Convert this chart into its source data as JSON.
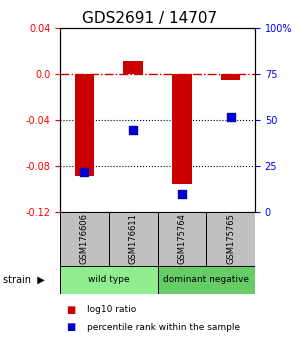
{
  "title": "GDS2691 / 14707",
  "samples": [
    "GSM176606",
    "GSM176611",
    "GSM175764",
    "GSM175765"
  ],
  "log10_ratio": [
    -0.088,
    0.012,
    -0.095,
    -0.005
  ],
  "percentile": [
    22,
    45,
    10,
    52
  ],
  "groups": [
    {
      "label": "wild type",
      "samples": [
        0,
        1
      ],
      "color": "#90ee90"
    },
    {
      "label": "dominant negative",
      "samples": [
        2,
        3
      ],
      "color": "#66cc66"
    }
  ],
  "ylim_left": [
    -0.12,
    0.04
  ],
  "ylim_right": [
    0,
    100
  ],
  "yticks_left": [
    -0.12,
    -0.08,
    -0.04,
    0.0,
    0.04
  ],
  "yticks_right": [
    0,
    25,
    50,
    75,
    100
  ],
  "bar_color": "#cc0000",
  "dot_color": "#0000cc",
  "hline_color": "#cc0000",
  "dotted_line_color": "#000000",
  "dotted_line_vals": [
    -0.04,
    -0.08
  ],
  "bar_width": 0.4,
  "background_color": "#ffffff",
  "label_log10": "log10 ratio",
  "label_percentile": "percentile rank within the sample",
  "strain_label": "strain",
  "group_box_color": "#c0c0c0",
  "title_fontsize": 11
}
